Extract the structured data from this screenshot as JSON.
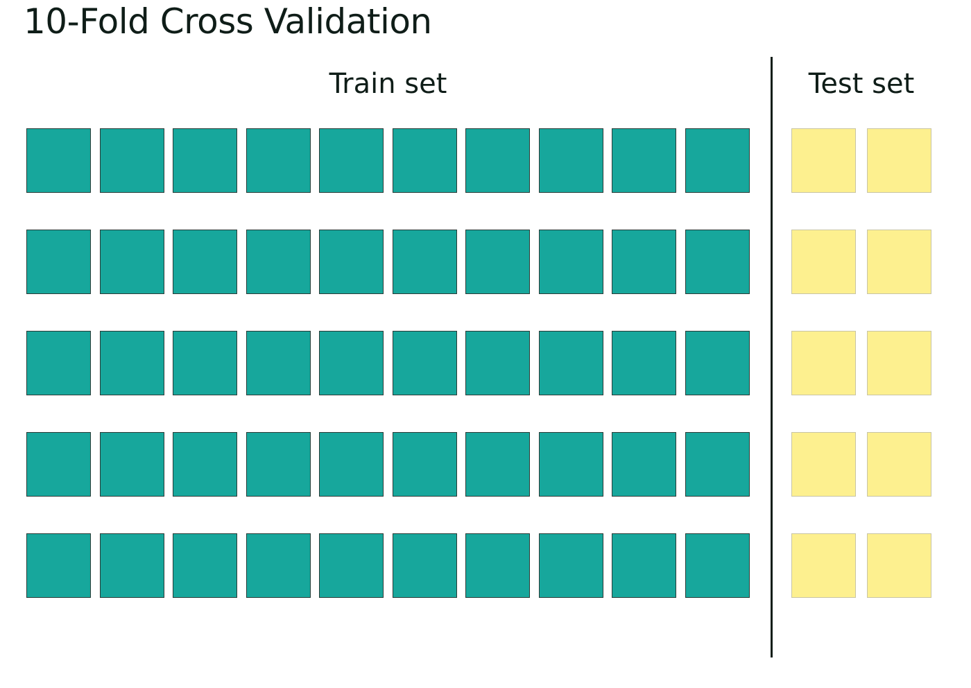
{
  "title": "10-Fold Cross Validation",
  "labels": {
    "train": "Train set",
    "test": "Test set"
  },
  "colors": {
    "train": "#17a79c",
    "test": "#fdf08f",
    "divider": "#0f1d18"
  },
  "rows": [
    {
      "train_blocks": 10,
      "test_blocks": 2
    },
    {
      "train_blocks": 10,
      "test_blocks": 2
    },
    {
      "train_blocks": 10,
      "test_blocks": 2
    },
    {
      "train_blocks": 10,
      "test_blocks": 2
    },
    {
      "train_blocks": 10,
      "test_blocks": 2
    }
  ]
}
